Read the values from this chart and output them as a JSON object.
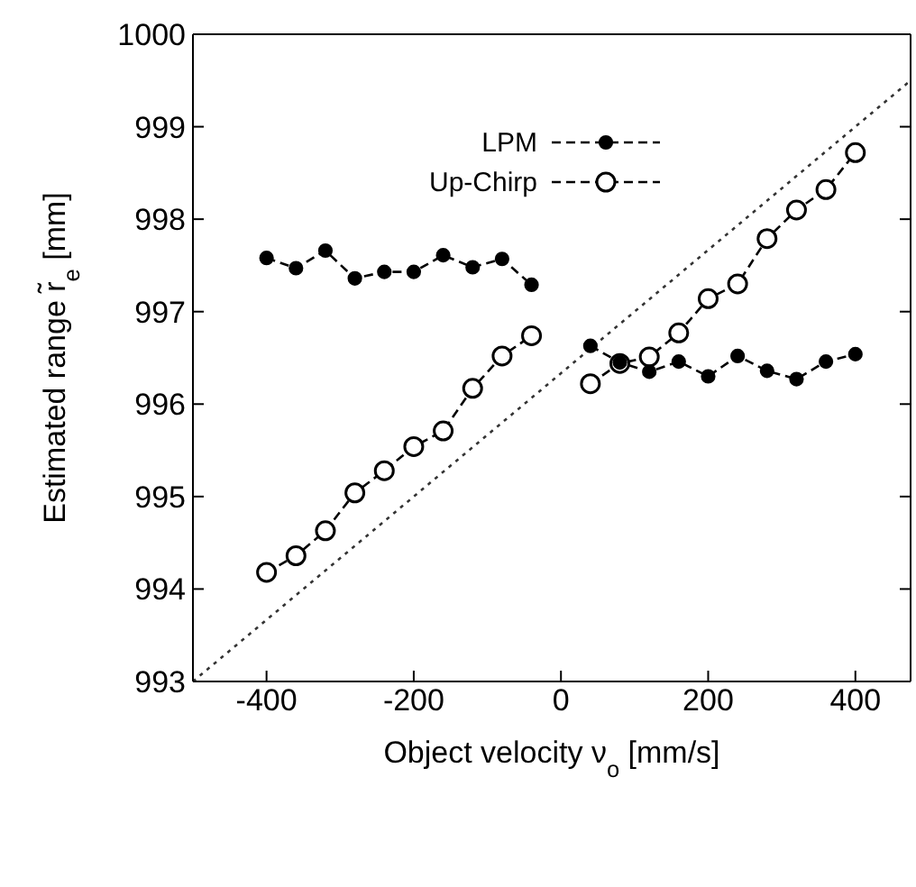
{
  "chart_data": {
    "type": "line",
    "xlabel": "Object velocity ν$_{o}$ [mm/s]",
    "ylabel": "Estimated range r̃$_{e}$ [mm]",
    "x": [
      -400,
      -360,
      -320,
      -280,
      -240,
      -200,
      -160,
      -120,
      -80,
      -40,
      0,
      40,
      80,
      120,
      160,
      200,
      240,
      280,
      320,
      360,
      400
    ],
    "series": [
      {
        "name": "LPM",
        "color": "#000000",
        "marker": "circle",
        "line_style": "dashed",
        "values": [
          997.58,
          997.47,
          997.66,
          997.36,
          997.43,
          997.43,
          997.61,
          997.48,
          997.57,
          997.29,
          null,
          996.63,
          996.45,
          996.35,
          996.46,
          996.3,
          996.52,
          996.36,
          996.27,
          996.46,
          996.54
        ]
      },
      {
        "name": "Up-Chirp",
        "color": "#000000",
        "marker": "circle",
        "line_style": "dashed",
        "values": [
          994.18,
          994.36,
          994.63,
          995.04,
          995.28,
          995.54,
          995.71,
          996.17,
          996.52,
          996.74,
          null,
          996.22,
          996.44,
          996.51,
          996.77,
          997.14,
          997.3,
          997.79,
          998.1,
          998.32,
          998.72
        ]
      },
      {
        "color": "#333333",
        "marker": "none",
        "line_style": "dotted",
        "x": [
          -500,
          475
        ],
        "values": [
          993,
          999.5
        ]
      }
    ],
    "xlim": [
      -500,
      475
    ],
    "xticks": [
      -400,
      -200,
      0,
      200,
      400
    ],
    "ylim": [
      993,
      1000
    ],
    "yticks": [
      993,
      994,
      995,
      996,
      997,
      998,
      999,
      1000
    ],
    "legend": "top"
  }
}
